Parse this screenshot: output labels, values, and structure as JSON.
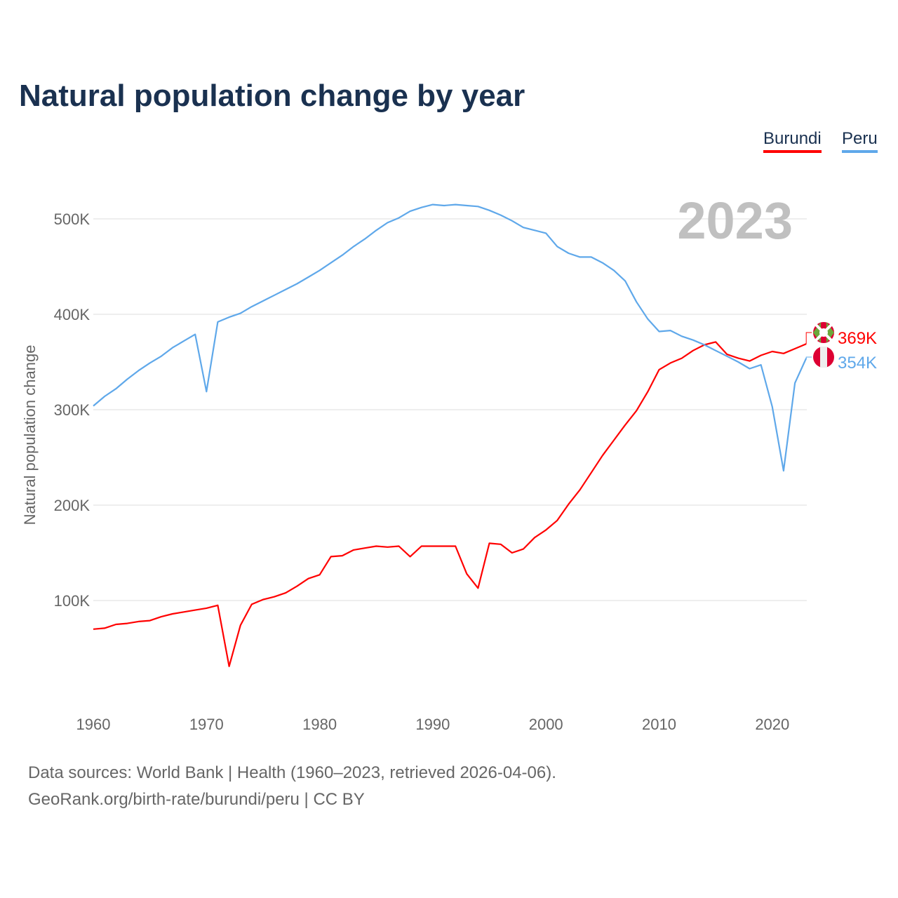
{
  "title": "Natural population change by year",
  "footer": {
    "line1": "Data sources: World Bank | Health (1960–2023, retrieved 2026-04-06).",
    "line2": "GeoRank.org/birth-rate/burundi/peru | CC BY"
  },
  "chart_data": {
    "type": "line",
    "title": "Natural population change by year",
    "ylabel": "Natural population change",
    "xlabel": "",
    "year_label": "2023",
    "xlim": [
      1960,
      2023
    ],
    "ylim": [
      0,
      520000
    ],
    "xticks": [
      1960,
      1970,
      1980,
      1990,
      2000,
      2010,
      2020
    ],
    "yticks": [
      {
        "v": 100000,
        "label": "100K"
      },
      {
        "v": 200000,
        "label": "200K"
      },
      {
        "v": 300000,
        "label": "300K"
      },
      {
        "v": 400000,
        "label": "400K"
      },
      {
        "v": 500000,
        "label": "500K"
      }
    ],
    "grid": true,
    "legend_position": "top-right",
    "x_start": 1960,
    "series": [
      {
        "name": "Burundi",
        "color": "#ff0000",
        "end_label": "369K",
        "flag": "burundi-flag",
        "values": [
          70,
          71,
          75,
          76,
          78,
          79,
          83,
          86,
          88,
          90,
          92,
          95,
          31,
          74,
          96,
          101,
          104,
          108,
          115,
          123,
          127,
          146,
          147,
          153,
          155,
          157,
          156,
          157,
          146,
          157,
          157,
          157,
          157,
          128,
          113,
          160,
          159,
          150,
          154,
          166,
          174,
          184,
          201,
          216,
          234,
          252,
          268,
          284,
          299,
          319,
          342,
          349,
          354,
          362,
          368,
          371,
          358,
          354,
          351,
          357,
          361,
          359,
          364,
          369
        ]
      },
      {
        "name": "Peru",
        "color": "#5fa8ea",
        "end_label": "354K",
        "flag": "peru-flag",
        "values": [
          304,
          314,
          322,
          332,
          341,
          349,
          356,
          365,
          372,
          379,
          319,
          392,
          397,
          401,
          408,
          414,
          420,
          426,
          432,
          439,
          446,
          454,
          462,
          471,
          479,
          488,
          496,
          501,
          508,
          512,
          515,
          514,
          515,
          514,
          513,
          509,
          504,
          498,
          491,
          488,
          485,
          471,
          464,
          460,
          460,
          454,
          446,
          435,
          413,
          395,
          382,
          383,
          377,
          373,
          368,
          362,
          356,
          350,
          343,
          347,
          303,
          236,
          328,
          354
        ]
      }
    ],
    "value_unit": "thousands"
  }
}
